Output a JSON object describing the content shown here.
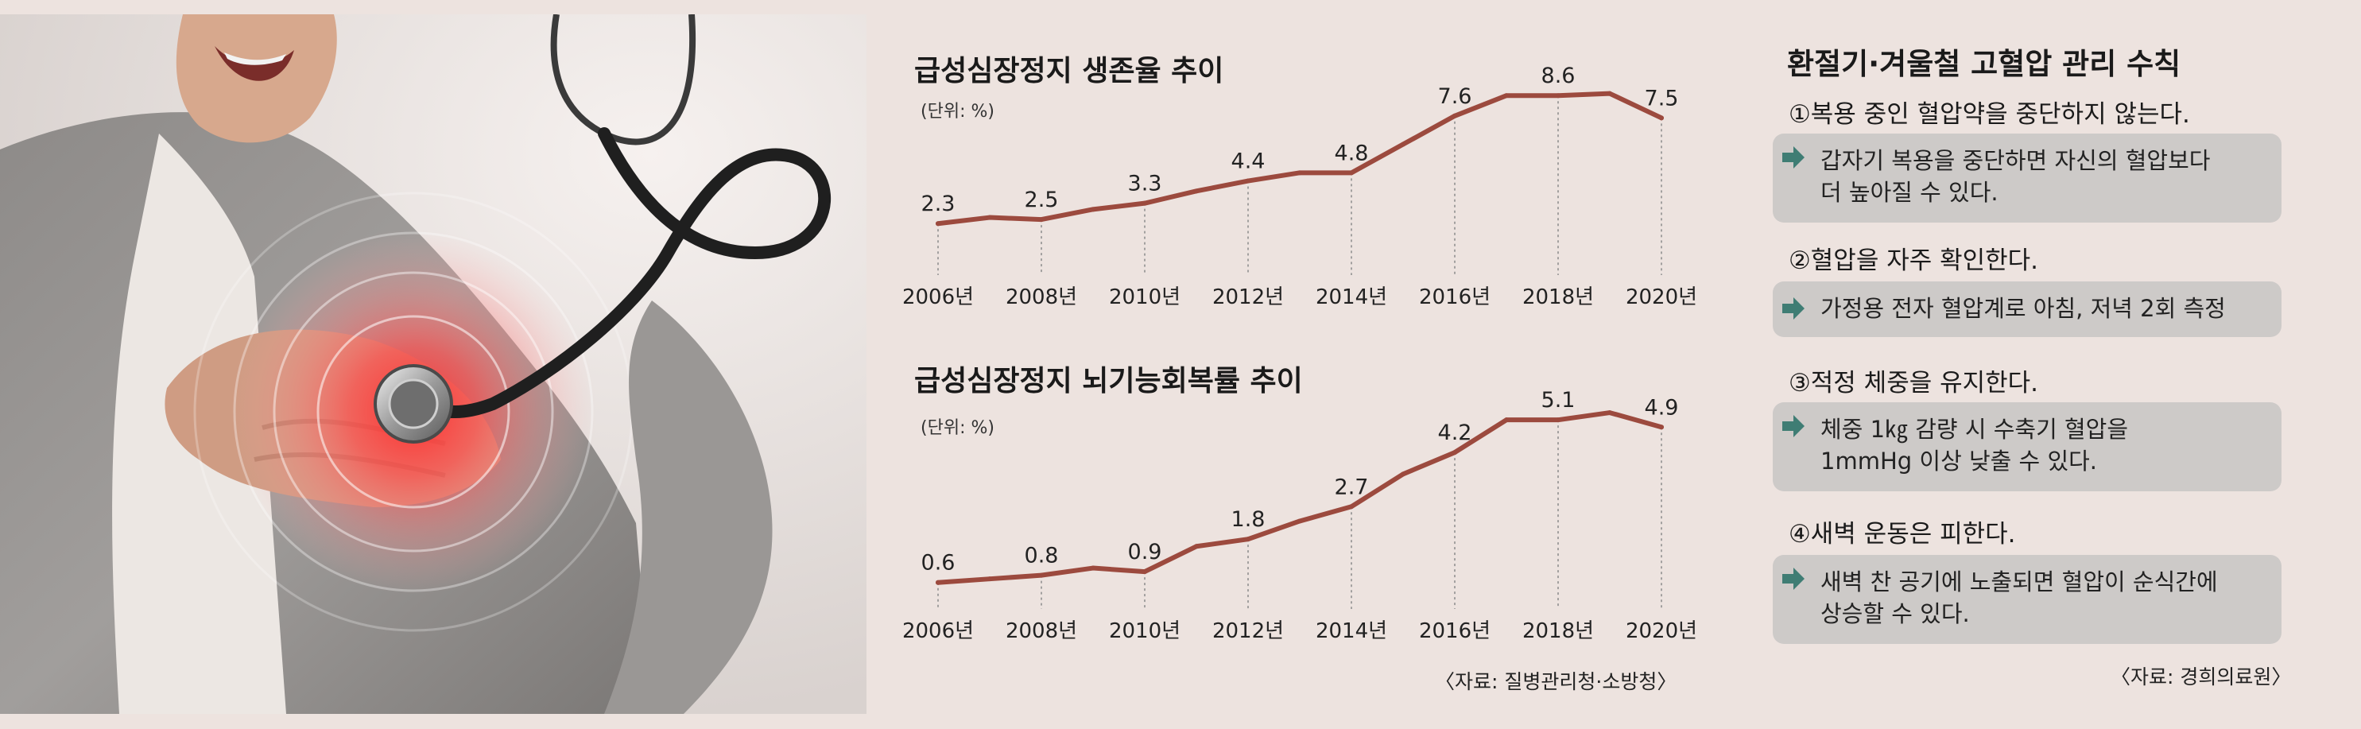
{
  "chart_data": [
    {
      "type": "line",
      "title": "급성심장정지 생존율 추이",
      "unit": "(단위: %)",
      "x": [
        2006,
        2007,
        2008,
        2009,
        2010,
        2011,
        2012,
        2013,
        2014,
        2015,
        2016,
        2017,
        2018,
        2019,
        2020
      ],
      "values": [
        2.3,
        2.6,
        2.5,
        3.0,
        3.3,
        3.9,
        4.4,
        4.8,
        4.8,
        6.2,
        7.6,
        8.6,
        8.6,
        8.7,
        7.5
      ],
      "value_labels": [
        {
          "x": 2006,
          "text": "2.3"
        },
        {
          "x": 2008,
          "text": "2.5"
        },
        {
          "x": 2010,
          "text": "3.3"
        },
        {
          "x": 2012,
          "text": "4.4"
        },
        {
          "x": 2014,
          "text": "4.8"
        },
        {
          "x": 2016,
          "text": "7.6"
        },
        {
          "x": 2018,
          "text": "8.6"
        },
        {
          "x": 2020,
          "text": "7.5"
        }
      ],
      "tick_labels": [
        "2006년",
        "2008년",
        "2010년",
        "2012년",
        "2014년",
        "2016년",
        "2018년",
        "2020년"
      ],
      "ylim": [
        0,
        9
      ],
      "grid": false,
      "color": "#9c4a3e"
    },
    {
      "type": "line",
      "title": "급성심장정지 뇌기능회복률 추이",
      "unit": "(단위: %)",
      "x": [
        2006,
        2007,
        2008,
        2009,
        2010,
        2011,
        2012,
        2013,
        2014,
        2015,
        2016,
        2017,
        2018,
        2019,
        2020
      ],
      "values": [
        0.6,
        0.7,
        0.8,
        1.0,
        0.9,
        1.6,
        1.8,
        2.3,
        2.7,
        3.6,
        4.2,
        5.1,
        5.1,
        5.3,
        4.9
      ],
      "value_labels": [
        {
          "x": 2006,
          "text": "0.6"
        },
        {
          "x": 2008,
          "text": "0.8"
        },
        {
          "x": 2010,
          "text": "0.9"
        },
        {
          "x": 2012,
          "text": "1.8"
        },
        {
          "x": 2014,
          "text": "2.7"
        },
        {
          "x": 2016,
          "text": "4.2"
        },
        {
          "x": 2018,
          "text": "5.1"
        },
        {
          "x": 2020,
          "text": "4.9"
        }
      ],
      "tick_labels": [
        "2006년",
        "2008년",
        "2010년",
        "2012년",
        "2014년",
        "2016년",
        "2018년",
        "2020년"
      ],
      "ylim": [
        0,
        5.5
      ],
      "grid": false,
      "color": "#9c4a3e"
    }
  ],
  "chart_source": "〈자료: 질병관리청·소방청〉",
  "tips": {
    "title": "환절기·겨울철 고혈압 관리 수칙",
    "rules": [
      {
        "heading": "①복용 중인 혈압약을 중단하지 않는다.",
        "lines": [
          "갑자기 복용을 중단하면 자신의 혈압보다",
          "더 높아질 수 있다."
        ]
      },
      {
        "heading": "②혈압을 자주 확인한다.",
        "lines": [
          "가정용 전자 혈압계로 아침, 저녁 2회 측정"
        ]
      },
      {
        "heading": "③적정 체중을 유지한다.",
        "lines": [
          "체중 1㎏ 감량 시 수축기 혈압을",
          "1mmHg 이상 낮출 수 있다."
        ]
      },
      {
        "heading": "④새벽 운동은 피한다.",
        "lines": [
          "새벽 찬 공기에 노출되면 혈압이 순식간에",
          "상승할 수 있다."
        ]
      }
    ],
    "source": "〈자료: 경희의료원〉",
    "arrow_color": "#3f7d74",
    "box_color": "#cdcac8"
  }
}
